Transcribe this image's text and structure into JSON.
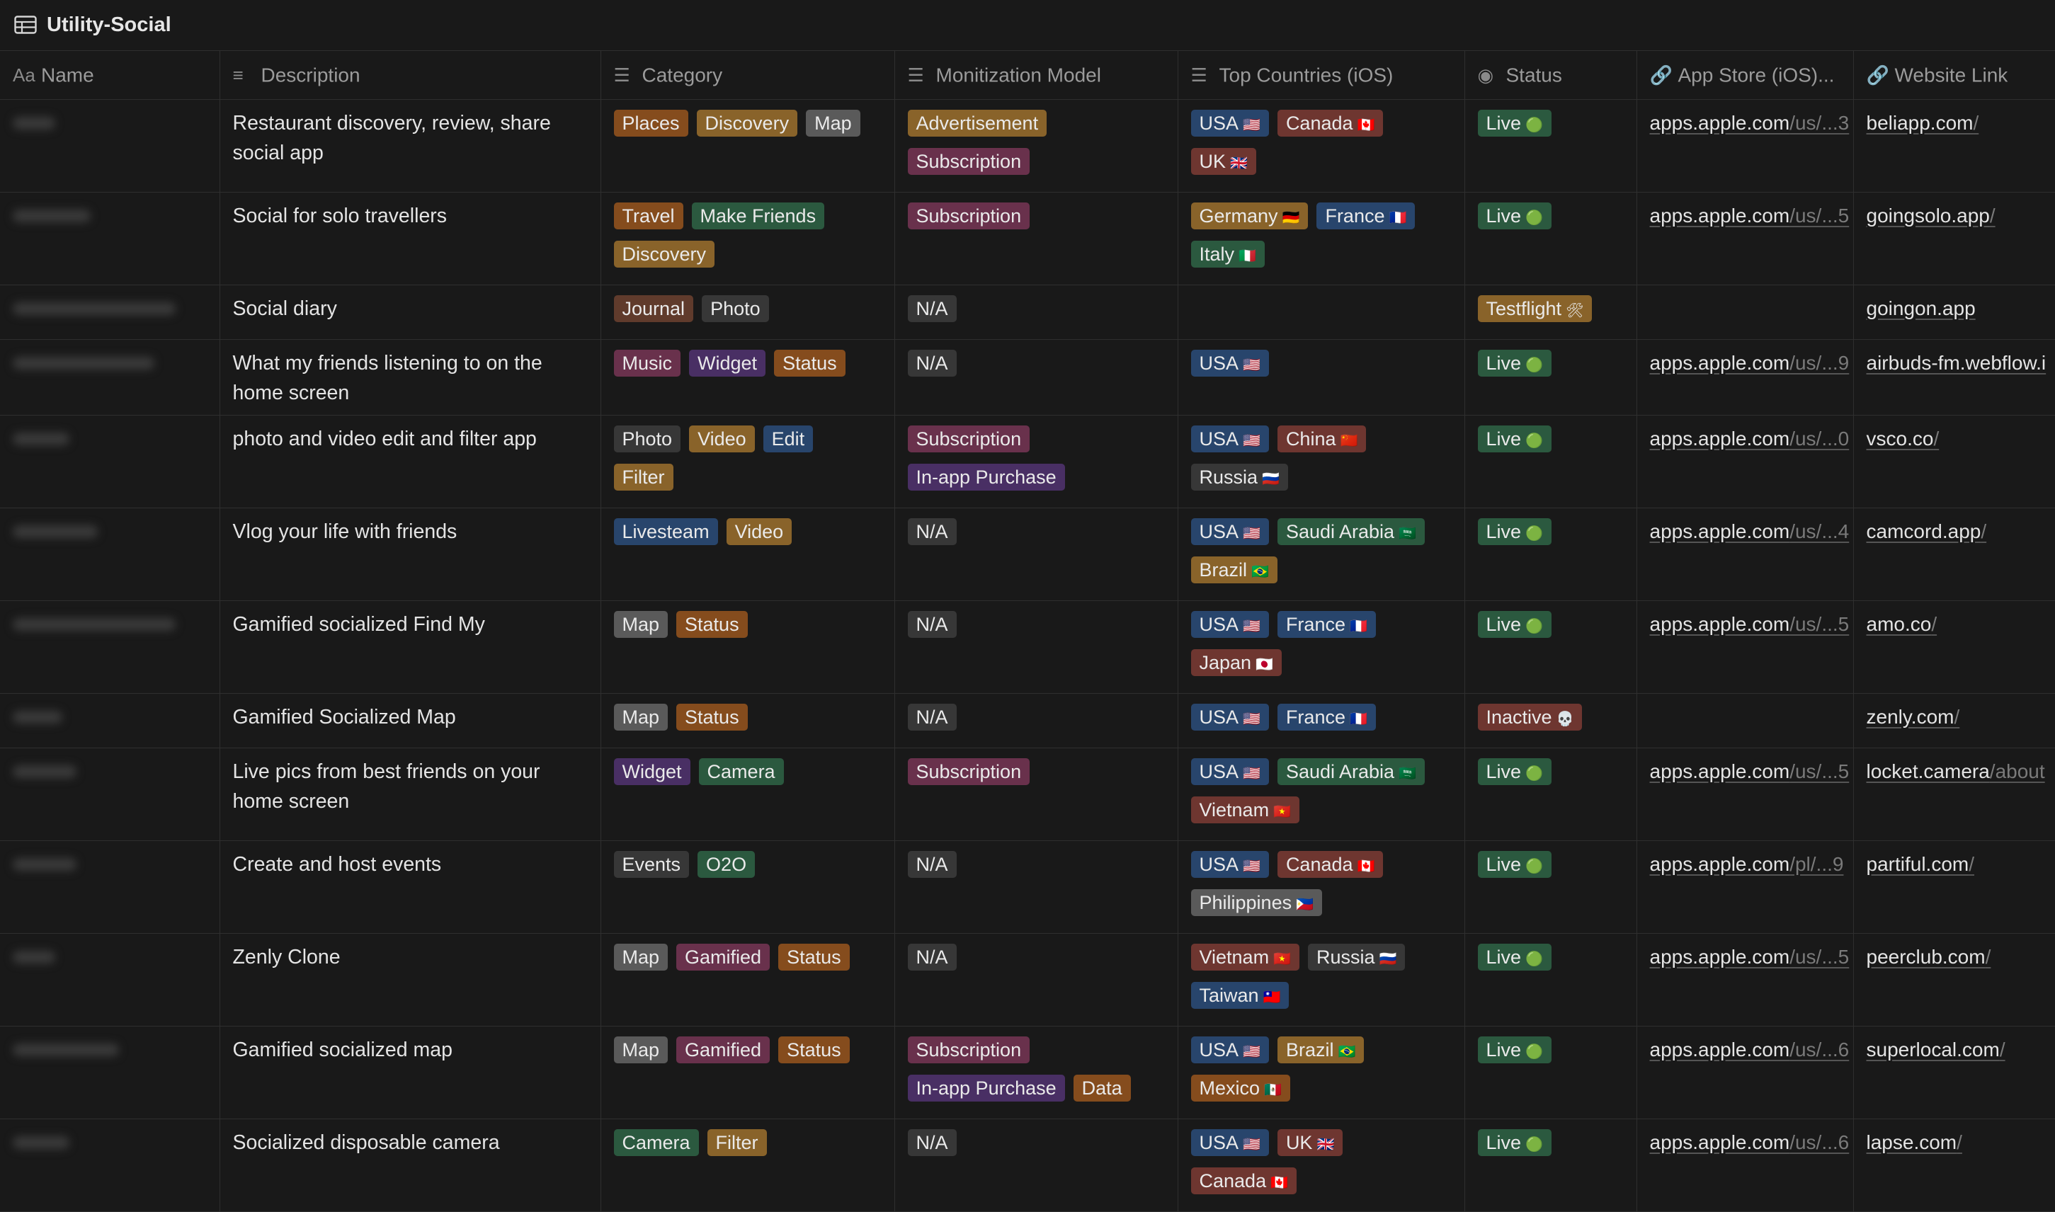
{
  "page": {
    "title": "Utility-Social"
  },
  "colors": {
    "brown": "#603b2c",
    "orange": "#854c1d",
    "yellow": "#89632a",
    "green": "#2b593f",
    "blue": "#28456c",
    "purple": "#492f64",
    "pink": "#69314c",
    "red": "#6e3630",
    "gray": "#5a5a5a",
    "default": "#373737"
  },
  "columns": [
    {
      "icon": "Aa",
      "label": "Name",
      "icon_name": "text-icon"
    },
    {
      "icon": "≡",
      "label": "Description",
      "icon_name": "text-lines-icon"
    },
    {
      "icon": "☰",
      "label": "Category",
      "icon_name": "multi-select-icon"
    },
    {
      "icon": "☰",
      "label": "Monitization Model",
      "icon_name": "multi-select-icon"
    },
    {
      "icon": "☰",
      "label": "Top Countries (iOS)",
      "icon_name": "multi-select-icon"
    },
    {
      "icon": "◉",
      "label": "Status",
      "icon_name": "status-icon"
    },
    {
      "icon": "🔗",
      "label": "App Store (iOS)...",
      "icon_name": "link-icon"
    },
    {
      "icon": "🔗",
      "label": "Website Link",
      "icon_name": "link-icon"
    }
  ],
  "rows": [
    {
      "desc": "Restaurant discovery, review, share social app",
      "category": [
        [
          "Places",
          "orange"
        ],
        [
          "Discovery",
          "yellow"
        ],
        [
          "Map",
          "gray"
        ]
      ],
      "monetization": [
        [
          "Advertisement",
          "yellow"
        ],
        [
          "Subscription",
          "pink"
        ]
      ],
      "countries": [
        [
          "USA",
          "blue",
          "🇺🇸"
        ],
        [
          "Canada",
          "red",
          "🇨🇦"
        ],
        [
          "UK",
          "red",
          "🇬🇧"
        ]
      ],
      "status": [
        [
          "Live",
          "green",
          "🟢"
        ]
      ],
      "appstore": [
        "apps.apple.com",
        "/us/...3"
      ],
      "website": [
        "beliapp.com",
        "/"
      ]
    },
    {
      "desc": "Social for solo travellers",
      "category": [
        [
          "Travel",
          "orange"
        ],
        [
          "Make Friends",
          "green"
        ],
        [
          "Discovery",
          "yellow"
        ]
      ],
      "monetization": [
        [
          "Subscription",
          "pink"
        ]
      ],
      "countries": [
        [
          "Germany",
          "yellow",
          "🇩🇪"
        ],
        [
          "France",
          "blue",
          "🇫🇷"
        ],
        [
          "Italy",
          "green",
          "🇮🇹"
        ]
      ],
      "status": [
        [
          "Live",
          "green",
          "🟢"
        ]
      ],
      "appstore": [
        "apps.apple.com",
        "/us/...5"
      ],
      "website": [
        "goingsolo.app",
        "/"
      ]
    },
    {
      "desc": "Social diary",
      "category": [
        [
          "Journal",
          "brown"
        ],
        [
          "Photo",
          "default"
        ]
      ],
      "monetization": [
        [
          "N/A",
          "default"
        ]
      ],
      "countries": [],
      "status": [
        [
          "Testflight",
          "yellow",
          "🛠"
        ]
      ],
      "appstore": [
        "",
        ""
      ],
      "website": [
        "goingon.app",
        ""
      ]
    },
    {
      "desc": "What my friends listening to on the home screen",
      "category": [
        [
          "Music",
          "pink"
        ],
        [
          "Widget",
          "purple"
        ],
        [
          "Status",
          "orange"
        ]
      ],
      "monetization": [
        [
          "N/A",
          "default"
        ]
      ],
      "countries": [
        [
          "USA",
          "blue",
          "🇺🇸"
        ]
      ],
      "status": [
        [
          "Live",
          "green",
          "🟢"
        ]
      ],
      "appstore": [
        "apps.apple.com",
        "/us/...9"
      ],
      "website": [
        "airbuds-fm.webflow.i",
        ""
      ]
    },
    {
      "desc": "photo and video edit and filter app",
      "category": [
        [
          "Photo",
          "default"
        ],
        [
          "Video",
          "yellow"
        ],
        [
          "Edit",
          "blue"
        ],
        [
          "Filter",
          "yellow"
        ]
      ],
      "monetization": [
        [
          "Subscription",
          "pink"
        ],
        [
          "In-app Purchase",
          "purple"
        ]
      ],
      "countries": [
        [
          "USA",
          "blue",
          "🇺🇸"
        ],
        [
          "China",
          "red",
          "🇨🇳"
        ],
        [
          "Russia",
          "default",
          "🇷🇺"
        ]
      ],
      "status": [
        [
          "Live",
          "green",
          "🟢"
        ]
      ],
      "appstore": [
        "apps.apple.com",
        "/us/...0"
      ],
      "website": [
        "vsco.co",
        "/"
      ]
    },
    {
      "desc": "Vlog your life with friends",
      "category": [
        [
          "Livesteam",
          "blue"
        ],
        [
          "Video",
          "yellow"
        ]
      ],
      "monetization": [
        [
          "N/A",
          "default"
        ]
      ],
      "countries": [
        [
          "USA",
          "blue",
          "🇺🇸"
        ],
        [
          "Saudi Arabia",
          "green",
          "🇸🇦"
        ],
        [
          "Brazil",
          "yellow",
          "🇧🇷"
        ]
      ],
      "status": [
        [
          "Live",
          "green",
          "🟢"
        ]
      ],
      "appstore": [
        "apps.apple.com",
        "/us/...4"
      ],
      "website": [
        "camcord.app",
        "/"
      ]
    },
    {
      "desc": "Gamified socialized Find My",
      "category": [
        [
          "Map",
          "gray"
        ],
        [
          "Status",
          "orange"
        ]
      ],
      "monetization": [
        [
          "N/A",
          "default"
        ]
      ],
      "countries": [
        [
          "USA",
          "blue",
          "🇺🇸"
        ],
        [
          "France",
          "blue",
          "🇫🇷"
        ],
        [
          "Japan",
          "red",
          "🇯🇵"
        ]
      ],
      "status": [
        [
          "Live",
          "green",
          "🟢"
        ]
      ],
      "appstore": [
        "apps.apple.com",
        "/us/...5"
      ],
      "website": [
        "amo.co",
        "/"
      ]
    },
    {
      "desc": "Gamified Socialized Map",
      "category": [
        [
          "Map",
          "gray"
        ],
        [
          "Status",
          "orange"
        ]
      ],
      "monetization": [
        [
          "N/A",
          "default"
        ]
      ],
      "countries": [
        [
          "USA",
          "blue",
          "🇺🇸"
        ],
        [
          "France",
          "blue",
          "🇫🇷"
        ]
      ],
      "status": [
        [
          "Inactive",
          "red",
          "💀"
        ]
      ],
      "appstore": [
        "",
        ""
      ],
      "website": [
        "zenly.com",
        "/"
      ]
    },
    {
      "desc": "Live pics from best friends on your home screen",
      "category": [
        [
          "Widget",
          "purple"
        ],
        [
          "Camera",
          "green"
        ]
      ],
      "monetization": [
        [
          "Subscription",
          "pink"
        ]
      ],
      "countries": [
        [
          "USA",
          "blue",
          "🇺🇸"
        ],
        [
          "Saudi Arabia",
          "green",
          "🇸🇦"
        ],
        [
          "Vietnam",
          "red",
          "🇻🇳"
        ]
      ],
      "status": [
        [
          "Live",
          "green",
          "🟢"
        ]
      ],
      "appstore": [
        "apps.apple.com",
        "/us/...5"
      ],
      "website": [
        "locket.camera",
        "/about"
      ]
    },
    {
      "desc": "Create and host events",
      "category": [
        [
          "Events",
          "default"
        ],
        [
          "O2O",
          "green"
        ]
      ],
      "monetization": [
        [
          "N/A",
          "default"
        ]
      ],
      "countries": [
        [
          "USA",
          "blue",
          "🇺🇸"
        ],
        [
          "Canada",
          "red",
          "🇨🇦"
        ],
        [
          "Philippines",
          "gray",
          "🇵🇭"
        ]
      ],
      "status": [
        [
          "Live",
          "green",
          "🟢"
        ]
      ],
      "appstore": [
        "apps.apple.com",
        "/pl/...9"
      ],
      "website": [
        "partiful.com",
        "/"
      ]
    },
    {
      "desc": "Zenly Clone",
      "category": [
        [
          "Map",
          "gray"
        ],
        [
          "Gamified",
          "pink"
        ],
        [
          "Status",
          "orange"
        ]
      ],
      "monetization": [
        [
          "N/A",
          "default"
        ]
      ],
      "countries": [
        [
          "Vietnam",
          "red",
          "🇻🇳"
        ],
        [
          "Russia",
          "default",
          "🇷🇺"
        ],
        [
          "Taiwan",
          "blue",
          "🇹🇼"
        ]
      ],
      "status": [
        [
          "Live",
          "green",
          "🟢"
        ]
      ],
      "appstore": [
        "apps.apple.com",
        "/us/...5"
      ],
      "website": [
        "peerclub.com",
        "/"
      ]
    },
    {
      "desc": "Gamified socialized map",
      "category": [
        [
          "Map",
          "gray"
        ],
        [
          "Gamified",
          "pink"
        ],
        [
          "Status",
          "orange"
        ]
      ],
      "monetization": [
        [
          "Subscription",
          "pink"
        ],
        [
          "In-app Purchase",
          "purple"
        ],
        [
          "Data",
          "orange"
        ]
      ],
      "countries": [
        [
          "USA",
          "blue",
          "🇺🇸"
        ],
        [
          "Brazil",
          "yellow",
          "🇧🇷"
        ],
        [
          "Mexico",
          "orange",
          "🇲🇽"
        ]
      ],
      "status": [
        [
          "Live",
          "green",
          "🟢"
        ]
      ],
      "appstore": [
        "apps.apple.com",
        "/us/...6"
      ],
      "website": [
        "superlocal.com",
        "/"
      ]
    },
    {
      "desc": "Socialized disposable camera",
      "category": [
        [
          "Camera",
          "green"
        ],
        [
          "Filter",
          "yellow"
        ]
      ],
      "monetization": [
        [
          "N/A",
          "default"
        ]
      ],
      "countries": [
        [
          "USA",
          "blue",
          "🇺🇸"
        ],
        [
          "UK",
          "red",
          "🇬🇧"
        ],
        [
          "Canada",
          "red",
          "🇨🇦"
        ]
      ],
      "status": [
        [
          "Live",
          "green",
          "🟢"
        ]
      ],
      "appstore": [
        "apps.apple.com",
        "/us/...6"
      ],
      "website": [
        "lapse.com",
        "/"
      ]
    }
  ]
}
